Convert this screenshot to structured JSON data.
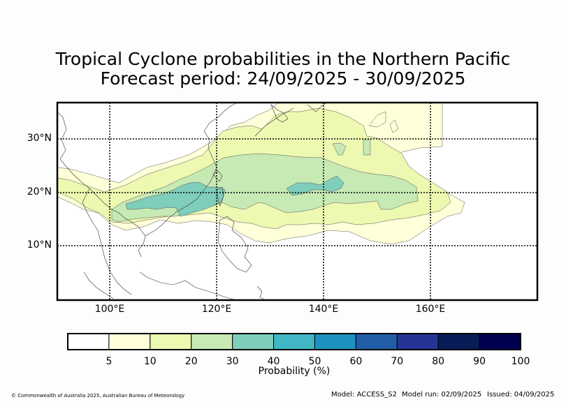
{
  "title_line1": "Tropical Cyclone probabilities in the Northern Pacific",
  "title_line2": "Forecast period: 24/09/2025 - 30/09/2025",
  "lat_labels": [
    "30°N",
    "20°N",
    "10°N"
  ],
  "lon_labels": [
    "100°E",
    "120°E",
    "140°E",
    "160°E"
  ],
  "colorbar": {
    "label": "Probability (%)",
    "ticks": [
      "5",
      "10",
      "20",
      "30",
      "40",
      "50",
      "60",
      "70",
      "80",
      "90",
      "100"
    ],
    "colors": [
      "#ffffff",
      "#ffffd9",
      "#edf8b1",
      "#c7e9b4",
      "#7fcdbb",
      "#41b6c4",
      "#1d91c0",
      "#225ea8",
      "#253494",
      "#081d58",
      "#000050"
    ]
  },
  "copyright": "© Commonwealth of Australia 2025, Australian Bureau of Meteorology",
  "model": "Model: ACCESS_S2",
  "model_run": "Model run: 02/09/2025",
  "issued": "Issued: 04/09/2025"
}
